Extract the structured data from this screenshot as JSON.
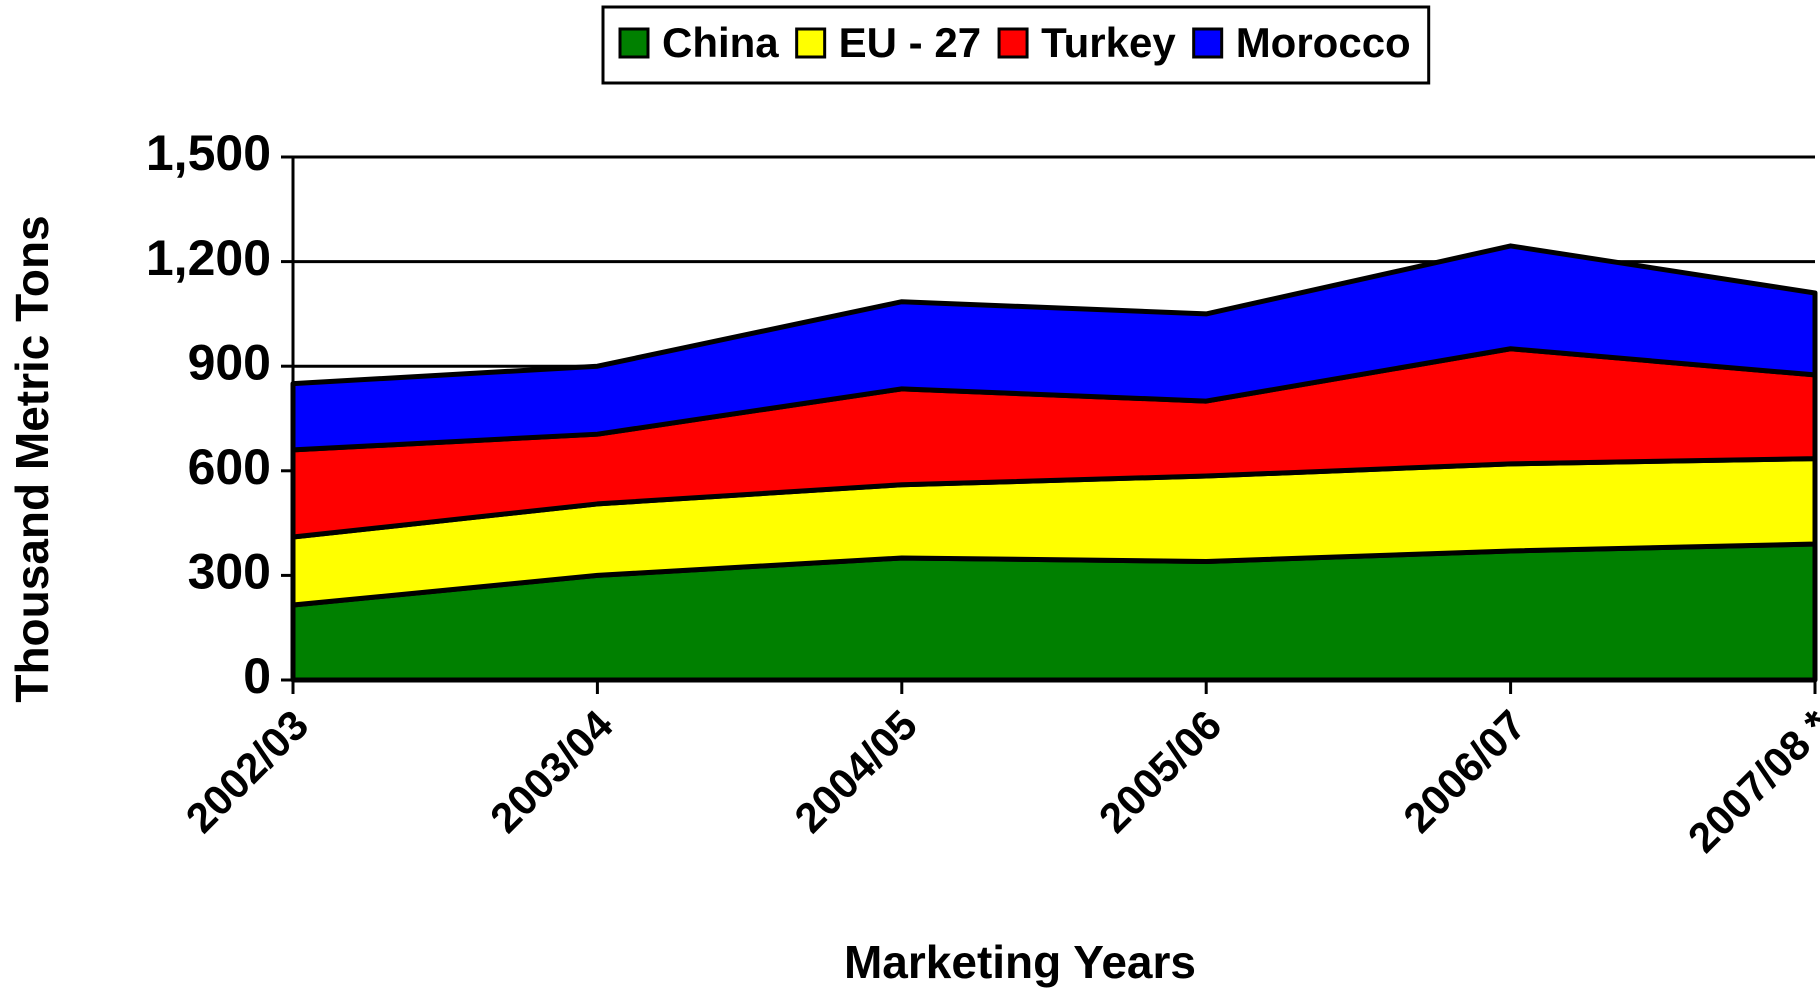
{
  "chart_data": {
    "type": "stacked-area",
    "x_label": "Marketing Years",
    "y_label": "Thousand Metric Tons",
    "categories": [
      "2002/03",
      "2003/04",
      "2004/05",
      "2005/06",
      "2006/07",
      "2007/08 *"
    ],
    "series": [
      {
        "name": "China",
        "color": "#008000",
        "values": [
          215,
          300,
          350,
          340,
          370,
          390
        ]
      },
      {
        "name": "EU - 27",
        "color": "#ffff00",
        "values": [
          195,
          205,
          210,
          245,
          250,
          245
        ]
      },
      {
        "name": "Turkey",
        "color": "#ff0000",
        "values": [
          250,
          200,
          275,
          215,
          330,
          240
        ]
      },
      {
        "name": "Morocco",
        "color": "#0000ff",
        "values": [
          190,
          195,
          250,
          250,
          295,
          235
        ]
      }
    ],
    "ylim": [
      0,
      1500
    ],
    "yticks": [
      0,
      300,
      600,
      900,
      {
        "value": 1200,
        "label": "1,200"
      },
      {
        "value": 1500,
        "label": "1,500"
      }
    ],
    "grid": true,
    "legend": "top"
  }
}
